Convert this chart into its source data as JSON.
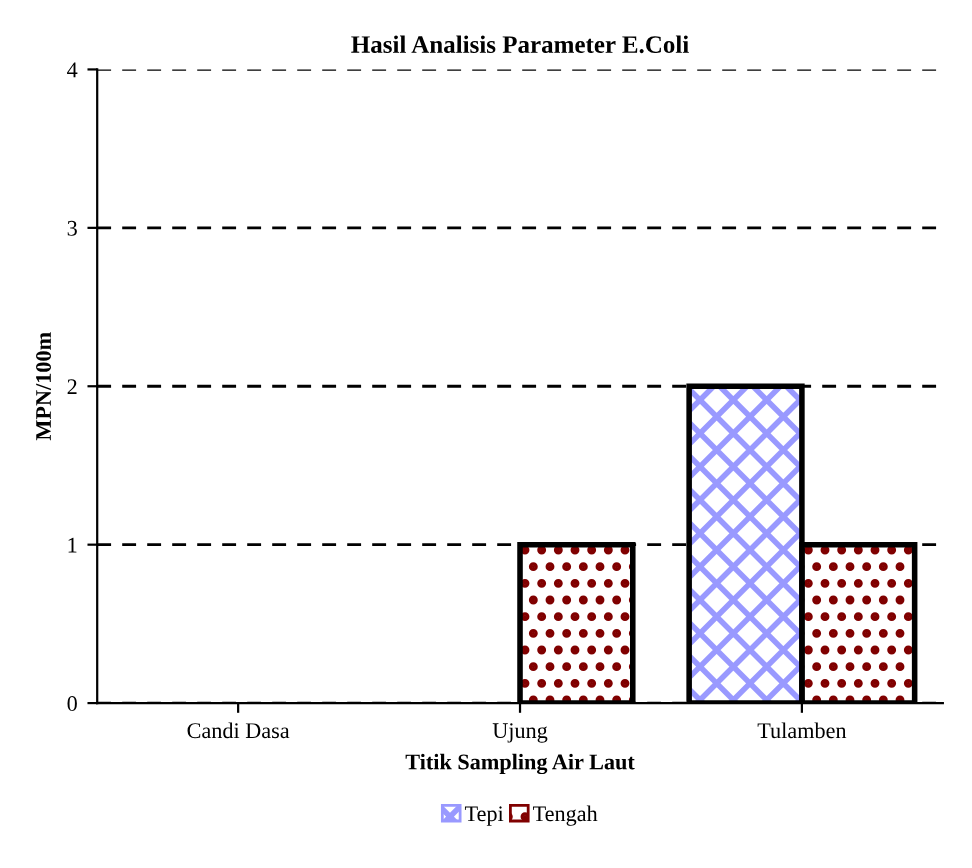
{
  "chart_data": {
    "type": "bar",
    "title": "Hasil Analisis Parameter E.Coli",
    "xlabel": "Titik Sampling Air Laut",
    "ylabel": "MPN/100m",
    "categories": [
      "Candi Dasa",
      "Ujung",
      "Tulamben"
    ],
    "series": [
      {
        "name": "Tepi",
        "color": "#9999ff",
        "values": [
          0,
          0,
          2
        ]
      },
      {
        "name": "Tengah",
        "color": "#800000",
        "values": [
          0,
          1,
          1
        ]
      }
    ],
    "ylim": [
      0,
      4
    ],
    "yticks": [
      0,
      1,
      2,
      3,
      4
    ],
    "grid": "y",
    "legend": "bottom"
  }
}
